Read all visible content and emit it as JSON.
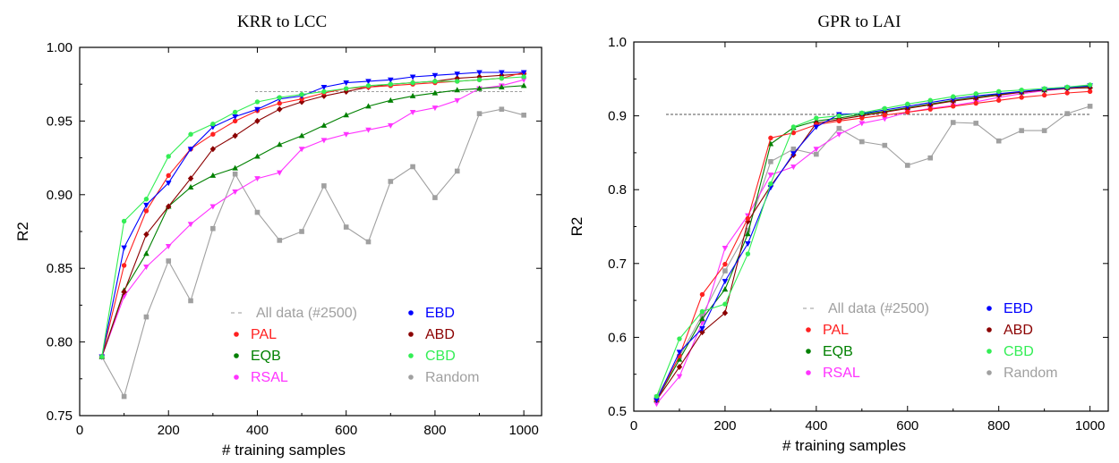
{
  "chart_data": [
    {
      "type": "line",
      "title": "KRR to LCC",
      "xlabel": "# training samples",
      "ylabel": "R2",
      "xlim": [
        0,
        1040
      ],
      "ylim": [
        0.75,
        1.0
      ],
      "xticks": [
        0,
        200,
        400,
        600,
        800,
        1000
      ],
      "yticks": [
        0.75,
        0.8,
        0.85,
        0.9,
        0.95,
        1.0
      ],
      "ytick_labels": [
        "0.75",
        "0.80",
        "0.85",
        "0.90",
        "0.95",
        "1.00"
      ],
      "xtick_labels": [
        "0",
        "200",
        "400",
        "600",
        "800",
        "1000"
      ],
      "reference_line": {
        "label": "All data (#2500)",
        "value": 0.97,
        "color": "#a0a0a0"
      },
      "legend": [
        [
          "All data (#2500)",
          "EBD"
        ],
        [
          "PAL",
          "ABD"
        ],
        [
          "EQB",
          "CBD"
        ],
        [
          "RSAL",
          "Random"
        ]
      ],
      "x": [
        50,
        100,
        150,
        200,
        250,
        300,
        350,
        400,
        450,
        500,
        550,
        600,
        650,
        700,
        750,
        800,
        850,
        900,
        950,
        1000
      ],
      "series": [
        {
          "name": "Random",
          "color": "#a0a0a0",
          "marker": "square",
          "values": [
            0.79,
            0.763,
            0.817,
            0.855,
            0.828,
            0.877,
            0.914,
            0.888,
            0.869,
            0.875,
            0.906,
            0.878,
            0.868,
            0.909,
            0.919,
            0.898,
            0.916,
            0.955,
            0.958,
            0.954
          ]
        },
        {
          "name": "RSAL",
          "color": "#ff33ff",
          "marker": "triangle-down",
          "values": [
            0.79,
            0.831,
            0.851,
            0.865,
            0.88,
            0.892,
            0.902,
            0.911,
            0.915,
            0.931,
            0.937,
            0.941,
            0.944,
            0.947,
            0.956,
            0.959,
            0.964,
            0.972,
            0.974,
            0.978
          ]
        },
        {
          "name": "EQB",
          "color": "#008000",
          "marker": "triangle-up",
          "values": [
            0.79,
            0.835,
            0.86,
            0.892,
            0.905,
            0.913,
            0.918,
            0.926,
            0.934,
            0.94,
            0.947,
            0.954,
            0.96,
            0.964,
            0.967,
            0.969,
            0.971,
            0.972,
            0.973,
            0.974
          ]
        },
        {
          "name": "ABD",
          "color": "#8b0000",
          "marker": "diamond",
          "values": [
            0.79,
            0.834,
            0.873,
            0.892,
            0.911,
            0.931,
            0.94,
            0.95,
            0.958,
            0.963,
            0.967,
            0.97,
            0.973,
            0.975,
            0.976,
            0.977,
            0.979,
            0.98,
            0.981,
            0.982
          ]
        },
        {
          "name": "PAL",
          "color": "#ff2020",
          "marker": "circle",
          "values": [
            0.79,
            0.852,
            0.889,
            0.913,
            0.931,
            0.941,
            0.95,
            0.957,
            0.962,
            0.965,
            0.969,
            0.972,
            0.973,
            0.974,
            0.975,
            0.976,
            0.977,
            0.978,
            0.979,
            0.983
          ]
        },
        {
          "name": "EBD",
          "color": "#0000ff",
          "marker": "triangle-down",
          "values": [
            0.79,
            0.864,
            0.893,
            0.908,
            0.931,
            0.946,
            0.953,
            0.958,
            0.965,
            0.967,
            0.973,
            0.976,
            0.977,
            0.978,
            0.98,
            0.981,
            0.982,
            0.983,
            0.983,
            0.983
          ]
        },
        {
          "name": "CBD",
          "color": "#33ee55",
          "marker": "circle",
          "values": [
            0.79,
            0.882,
            0.897,
            0.926,
            0.941,
            0.948,
            0.956,
            0.963,
            0.966,
            0.968,
            0.97,
            0.972,
            0.974,
            0.975,
            0.976,
            0.977,
            0.977,
            0.978,
            0.979,
            0.98
          ]
        }
      ]
    },
    {
      "type": "line",
      "title": "GPR to LAI",
      "xlabel": "# training samples",
      "ylabel": "R2",
      "xlim": [
        0,
        1040
      ],
      "ylim": [
        0.5,
        1.0
      ],
      "xticks": [
        0,
        200,
        400,
        600,
        800,
        1000
      ],
      "yticks": [
        0.5,
        0.6,
        0.7,
        0.8,
        0.9,
        1.0
      ],
      "ytick_labels": [
        "0.5",
        "0.6",
        "0.7",
        "0.8",
        "0.9",
        "1.0"
      ],
      "xtick_labels": [
        "0",
        "200",
        "400",
        "600",
        "800",
        "1000"
      ],
      "reference_line": {
        "label": "All data (#2500)",
        "value": 0.902,
        "color": "#555555"
      },
      "legend": [
        [
          "All data (#2500)",
          "EBD"
        ],
        [
          "PAL",
          "ABD"
        ],
        [
          "EQB",
          "CBD"
        ],
        [
          "RSAL",
          "Random"
        ]
      ],
      "x": [
        50,
        100,
        150,
        200,
        250,
        300,
        350,
        400,
        450,
        500,
        550,
        600,
        650,
        700,
        750,
        800,
        850,
        900,
        950,
        1000
      ],
      "series": [
        {
          "name": "Random",
          "color": "#a0a0a0",
          "marker": "square",
          "values": [
            0.519,
            0.574,
            0.63,
            0.69,
            0.745,
            0.838,
            0.855,
            0.848,
            0.883,
            0.865,
            0.86,
            0.833,
            0.843,
            0.891,
            0.89,
            0.866,
            0.88,
            0.88,
            0.903,
            0.913
          ]
        },
        {
          "name": "RSAL",
          "color": "#ff33ff",
          "marker": "triangle-down",
          "values": [
            0.51,
            0.547,
            0.62,
            0.721,
            0.765,
            0.82,
            0.831,
            0.855,
            0.875,
            0.89,
            0.896,
            0.905,
            0.91,
            0.914,
            0.919,
            0.925,
            0.93,
            0.934,
            0.937,
            0.939
          ]
        },
        {
          "name": "EQB",
          "color": "#008000",
          "marker": "triangle-up",
          "values": [
            0.515,
            0.57,
            0.625,
            0.665,
            0.74,
            0.862,
            0.884,
            0.893,
            0.897,
            0.902,
            0.906,
            0.911,
            0.916,
            0.921,
            0.925,
            0.929,
            0.932,
            0.935,
            0.938,
            0.94
          ]
        },
        {
          "name": "ABD",
          "color": "#8b0000",
          "marker": "diamond",
          "values": [
            0.515,
            0.56,
            0.607,
            0.633,
            0.757,
            0.805,
            0.847,
            0.89,
            0.895,
            0.9,
            0.905,
            0.91,
            0.915,
            0.92,
            0.924,
            0.928,
            0.932,
            0.935,
            0.937,
            0.938
          ]
        },
        {
          "name": "PAL",
          "color": "#ff2020",
          "marker": "circle",
          "values": [
            0.515,
            0.575,
            0.658,
            0.699,
            0.761,
            0.87,
            0.877,
            0.888,
            0.893,
            0.897,
            0.901,
            0.905,
            0.909,
            0.913,
            0.917,
            0.921,
            0.925,
            0.928,
            0.931,
            0.933
          ]
        },
        {
          "name": "EBD",
          "color": "#0000ff",
          "marker": "triangle-down",
          "values": [
            0.515,
            0.58,
            0.612,
            0.676,
            0.727,
            0.803,
            0.849,
            0.885,
            0.902,
            0.903,
            0.908,
            0.913,
            0.918,
            0.923,
            0.927,
            0.93,
            0.933,
            0.936,
            0.938,
            0.941
          ]
        },
        {
          "name": "CBD",
          "color": "#33ee55",
          "marker": "circle",
          "values": [
            0.52,
            0.598,
            0.635,
            0.645,
            0.713,
            0.808,
            0.885,
            0.897,
            0.9,
            0.904,
            0.91,
            0.916,
            0.921,
            0.926,
            0.93,
            0.933,
            0.935,
            0.937,
            0.939,
            0.942
          ]
        }
      ]
    }
  ]
}
